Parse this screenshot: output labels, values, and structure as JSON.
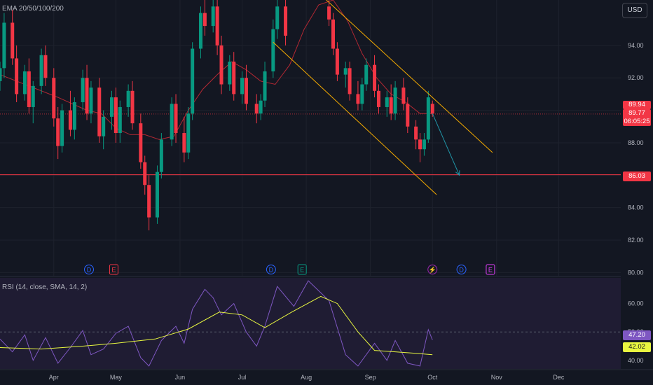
{
  "indicator_labels": {
    "ema": "EMA 20/50/100/200",
    "rsi": "RSI (14, close, SMA, 14, 2)"
  },
  "currency_button": "USD",
  "price_badges": {
    "last": "89.94",
    "current": "89.77",
    "countdown": "06:05:25",
    "level": "86.03",
    "rsi": "47.20",
    "rsi_ma": "42.02"
  },
  "colors": {
    "background": "#131722",
    "bull_candle": "#089981",
    "bear_candle": "#f23645",
    "ema": "#b22833",
    "channel": "#f2a900",
    "support_line": "#f23645",
    "projection_arrow": "#2196a8",
    "rsi_line": "#7e57c2",
    "rsi_ma": "#e8f740",
    "grid": "#1e222d",
    "axis_text": "#b2b5be"
  },
  "events": [
    {
      "letter": "D",
      "date": "2024-04-18",
      "color": "#2962ff",
      "icon": "dividend-icon"
    },
    {
      "letter": "E",
      "date": "2024-04-30",
      "color": "#f23645",
      "icon": "earnings-icon"
    },
    {
      "letter": "D",
      "date": "2024-07-15",
      "color": "#2962ff",
      "icon": "dividend-icon"
    },
    {
      "letter": "E",
      "date": "2024-07-30",
      "color": "#089981",
      "icon": "earnings-icon"
    },
    {
      "letter": "⚡",
      "date": "2024-10-01",
      "color": "#9c27b0",
      "icon": "split-icon"
    },
    {
      "letter": "D",
      "date": "2024-10-15",
      "color": "#2962ff",
      "icon": "dividend-icon"
    },
    {
      "letter": "E",
      "date": "2024-10-29",
      "color": "#e040fb",
      "icon": "earnings-icon"
    }
  ],
  "chart_data": [
    {
      "type": "candlestick",
      "title": "",
      "price_axis": {
        "ticks": [
          80,
          82,
          84,
          86,
          88,
          90,
          92,
          94
        ],
        "tick_labels": [
          "80.00",
          "82.00",
          "84.00",
          "86.00",
          "88.00",
          "90.00",
          "92.00",
          "94.00"
        ],
        "range": [
          79.8,
          96.8
        ]
      },
      "time_axis": {
        "labels": [
          "Apr",
          "May",
          "Jun",
          "Jul",
          "Aug",
          "Sep",
          "Oct",
          "Nov",
          "Dec"
        ],
        "label_dates": [
          "2024-04-01",
          "2024-05-01",
          "2024-06-01",
          "2024-07-01",
          "2024-08-01",
          "2024-09-01",
          "2024-10-01",
          "2024-11-01",
          "2024-12-01"
        ],
        "range": [
          "2024-03-06",
          "2024-12-31"
        ]
      },
      "grid": true,
      "horizontal_level": 86.03,
      "current_price": 89.77,
      "last_close": 89.94,
      "channel_upper": [
        [
          "2024-08-09",
          97.0
        ],
        [
          "2024-10-30",
          87.4
        ]
      ],
      "channel_lower": [
        [
          "2024-07-16",
          94.2
        ],
        [
          "2024-10-03",
          84.8
        ]
      ],
      "projection_arrow": [
        [
          "2024-10-01",
          89.8
        ],
        [
          "2024-10-14",
          86.0
        ]
      ],
      "ema": [
        [
          "2024-03-06",
          92.2
        ],
        [
          "2024-03-20",
          91.5
        ],
        [
          "2024-04-03",
          90.8
        ],
        [
          "2024-04-17",
          90.0
        ],
        [
          "2024-04-24",
          89.8
        ],
        [
          "2024-05-01",
          88.9
        ],
        [
          "2024-05-08",
          88.5
        ],
        [
          "2024-05-15",
          88.5
        ],
        [
          "2024-05-22",
          88.2
        ],
        [
          "2024-05-29",
          88.4
        ],
        [
          "2024-06-05",
          90.0
        ],
        [
          "2024-06-12",
          91.3
        ],
        [
          "2024-06-19",
          92.2
        ],
        [
          "2024-06-26",
          93.0
        ],
        [
          "2024-07-03",
          92.5
        ],
        [
          "2024-07-10",
          91.8
        ],
        [
          "2024-07-17",
          91.6
        ],
        [
          "2024-07-24",
          92.8
        ],
        [
          "2024-07-31",
          95.0
        ],
        [
          "2024-08-07",
          96.5
        ],
        [
          "2024-08-14",
          96.8
        ],
        [
          "2024-08-21",
          95.5
        ],
        [
          "2024-08-28",
          93.5
        ],
        [
          "2024-09-04",
          92.0
        ],
        [
          "2024-09-11",
          91.0
        ],
        [
          "2024-09-18",
          90.5
        ],
        [
          "2024-09-25",
          89.8
        ],
        [
          "2024-10-01",
          89.8
        ]
      ],
      "candles": [
        {
          "d": "2024-03-06",
          "o": 91.8,
          "h": 93.0,
          "l": 91.2,
          "c": 92.6
        },
        {
          "d": "2024-03-08",
          "o": 92.6,
          "h": 96.0,
          "l": 92.0,
          "c": 95.4
        },
        {
          "d": "2024-03-12",
          "o": 95.4,
          "h": 96.2,
          "l": 92.8,
          "c": 93.2
        },
        {
          "d": "2024-03-14",
          "o": 93.2,
          "h": 94.0,
          "l": 90.5,
          "c": 91.0
        },
        {
          "d": "2024-03-18",
          "o": 91.0,
          "h": 92.8,
          "l": 90.6,
          "c": 92.4
        },
        {
          "d": "2024-03-20",
          "o": 92.4,
          "h": 93.2,
          "l": 89.8,
          "c": 90.2
        },
        {
          "d": "2024-03-22",
          "o": 90.2,
          "h": 91.8,
          "l": 89.2,
          "c": 91.5
        },
        {
          "d": "2024-03-26",
          "o": 91.5,
          "h": 93.8,
          "l": 91.0,
          "c": 93.4
        },
        {
          "d": "2024-03-28",
          "o": 93.4,
          "h": 94.0,
          "l": 91.5,
          "c": 92.0
        },
        {
          "d": "2024-04-01",
          "o": 92.0,
          "h": 92.6,
          "l": 89.0,
          "c": 89.5
        },
        {
          "d": "2024-04-03",
          "o": 89.5,
          "h": 90.2,
          "l": 87.0,
          "c": 87.8
        },
        {
          "d": "2024-04-05",
          "o": 87.8,
          "h": 90.4,
          "l": 87.4,
          "c": 90.0
        },
        {
          "d": "2024-04-09",
          "o": 90.0,
          "h": 91.2,
          "l": 88.4,
          "c": 88.8
        },
        {
          "d": "2024-04-11",
          "o": 88.8,
          "h": 90.8,
          "l": 88.2,
          "c": 90.5
        },
        {
          "d": "2024-04-15",
          "o": 90.5,
          "h": 92.5,
          "l": 90.0,
          "c": 92.0
        },
        {
          "d": "2024-04-17",
          "o": 92.0,
          "h": 92.8,
          "l": 89.4,
          "c": 89.8
        },
        {
          "d": "2024-04-19",
          "o": 89.8,
          "h": 91.8,
          "l": 89.2,
          "c": 91.4
        },
        {
          "d": "2024-04-23",
          "o": 91.4,
          "h": 92.0,
          "l": 88.0,
          "c": 88.4
        },
        {
          "d": "2024-04-25",
          "o": 88.4,
          "h": 90.0,
          "l": 87.6,
          "c": 89.6
        },
        {
          "d": "2024-04-29",
          "o": 89.6,
          "h": 91.2,
          "l": 88.8,
          "c": 90.8
        },
        {
          "d": "2024-05-01",
          "o": 90.8,
          "h": 91.4,
          "l": 88.0,
          "c": 88.6
        },
        {
          "d": "2024-05-03",
          "o": 88.6,
          "h": 90.6,
          "l": 88.0,
          "c": 90.2
        },
        {
          "d": "2024-05-07",
          "o": 90.2,
          "h": 91.6,
          "l": 89.6,
          "c": 91.2
        },
        {
          "d": "2024-05-09",
          "o": 91.2,
          "h": 91.8,
          "l": 88.8,
          "c": 89.2
        },
        {
          "d": "2024-05-13",
          "o": 89.2,
          "h": 89.8,
          "l": 86.4,
          "c": 86.8
        },
        {
          "d": "2024-05-15",
          "o": 86.8,
          "h": 87.2,
          "l": 84.8,
          "c": 85.4
        },
        {
          "d": "2024-05-17",
          "o": 85.4,
          "h": 86.0,
          "l": 82.6,
          "c": 83.4
        },
        {
          "d": "2024-05-21",
          "o": 83.4,
          "h": 86.6,
          "l": 83.0,
          "c": 86.2
        },
        {
          "d": "2024-05-23",
          "o": 86.2,
          "h": 88.6,
          "l": 85.8,
          "c": 88.2
        },
        {
          "d": "2024-05-28",
          "o": 88.2,
          "h": 90.8,
          "l": 87.8,
          "c": 90.4
        },
        {
          "d": "2024-05-30",
          "o": 90.4,
          "h": 91.0,
          "l": 88.0,
          "c": 88.6
        },
        {
          "d": "2024-06-03",
          "o": 88.6,
          "h": 89.6,
          "l": 86.8,
          "c": 87.4
        },
        {
          "d": "2024-06-05",
          "o": 87.4,
          "h": 90.2,
          "l": 87.0,
          "c": 89.8
        },
        {
          "d": "2024-06-07",
          "o": 89.8,
          "h": 94.2,
          "l": 89.4,
          "c": 93.8
        },
        {
          "d": "2024-06-11",
          "o": 93.8,
          "h": 96.4,
          "l": 93.2,
          "c": 96.0
        },
        {
          "d": "2024-06-13",
          "o": 96.0,
          "h": 96.8,
          "l": 94.6,
          "c": 95.2
        },
        {
          "d": "2024-06-17",
          "o": 95.2,
          "h": 96.8,
          "l": 94.8,
          "c": 96.4
        },
        {
          "d": "2024-06-19",
          "o": 96.4,
          "h": 96.8,
          "l": 93.4,
          "c": 94.0
        },
        {
          "d": "2024-06-21",
          "o": 94.0,
          "h": 94.6,
          "l": 91.0,
          "c": 91.6
        },
        {
          "d": "2024-06-25",
          "o": 91.6,
          "h": 93.4,
          "l": 91.2,
          "c": 93.0
        },
        {
          "d": "2024-06-27",
          "o": 93.0,
          "h": 93.6,
          "l": 90.6,
          "c": 91.0
        },
        {
          "d": "2024-07-01",
          "o": 91.0,
          "h": 92.4,
          "l": 90.4,
          "c": 92.0
        },
        {
          "d": "2024-07-03",
          "o": 92.0,
          "h": 92.8,
          "l": 90.0,
          "c": 90.4
        },
        {
          "d": "2024-07-08",
          "o": 90.4,
          "h": 91.0,
          "l": 89.2,
          "c": 89.8
        },
        {
          "d": "2024-07-10",
          "o": 89.8,
          "h": 91.0,
          "l": 89.4,
          "c": 90.6
        },
        {
          "d": "2024-07-12",
          "o": 90.6,
          "h": 93.0,
          "l": 90.2,
          "c": 92.4
        },
        {
          "d": "2024-07-16",
          "o": 92.4,
          "h": 95.6,
          "l": 92.0,
          "c": 95.0
        },
        {
          "d": "2024-07-18",
          "o": 95.0,
          "h": 96.8,
          "l": 94.4,
          "c": 96.4
        },
        {
          "d": "2024-07-22",
          "o": 96.4,
          "h": 96.8,
          "l": 94.0,
          "c": 94.6
        },
        {
          "d": "2024-08-12",
          "o": 96.4,
          "h": 96.8,
          "l": 95.2,
          "c": 95.6
        },
        {
          "d": "2024-08-14",
          "o": 95.6,
          "h": 96.0,
          "l": 93.4,
          "c": 93.8
        },
        {
          "d": "2024-08-16",
          "o": 93.8,
          "h": 94.2,
          "l": 91.8,
          "c": 92.2
        },
        {
          "d": "2024-08-20",
          "o": 92.2,
          "h": 93.0,
          "l": 91.4,
          "c": 92.6
        },
        {
          "d": "2024-08-22",
          "o": 92.6,
          "h": 93.0,
          "l": 90.6,
          "c": 91.0
        },
        {
          "d": "2024-08-26",
          "o": 91.0,
          "h": 91.8,
          "l": 90.0,
          "c": 90.4
        },
        {
          "d": "2024-08-28",
          "o": 90.4,
          "h": 92.0,
          "l": 90.0,
          "c": 91.6
        },
        {
          "d": "2024-08-30",
          "o": 91.6,
          "h": 93.2,
          "l": 91.2,
          "c": 92.8
        },
        {
          "d": "2024-09-03",
          "o": 92.8,
          "h": 93.4,
          "l": 90.8,
          "c": 91.2
        },
        {
          "d": "2024-09-05",
          "o": 91.2,
          "h": 91.6,
          "l": 89.8,
          "c": 90.2
        },
        {
          "d": "2024-09-09",
          "o": 90.2,
          "h": 91.2,
          "l": 89.6,
          "c": 90.8
        },
        {
          "d": "2024-09-11",
          "o": 90.8,
          "h": 91.6,
          "l": 89.4,
          "c": 89.8
        },
        {
          "d": "2024-09-13",
          "o": 89.8,
          "h": 91.8,
          "l": 89.4,
          "c": 91.4
        },
        {
          "d": "2024-09-17",
          "o": 91.4,
          "h": 92.0,
          "l": 90.0,
          "c": 90.4
        },
        {
          "d": "2024-09-19",
          "o": 90.4,
          "h": 90.8,
          "l": 88.6,
          "c": 89.0
        },
        {
          "d": "2024-09-23",
          "o": 89.0,
          "h": 89.4,
          "l": 87.6,
          "c": 88.2
        },
        {
          "d": "2024-09-25",
          "o": 88.2,
          "h": 88.6,
          "l": 86.8,
          "c": 87.6
        },
        {
          "d": "2024-09-27",
          "o": 87.6,
          "h": 88.6,
          "l": 87.2,
          "c": 88.2
        },
        {
          "d": "2024-09-29",
          "o": 88.2,
          "h": 91.2,
          "l": 88.0,
          "c": 90.8
        },
        {
          "d": "2024-10-01",
          "o": 90.4,
          "h": 90.6,
          "l": 89.6,
          "c": 89.8
        }
      ]
    },
    {
      "type": "line",
      "title": "RSI (14, close, SMA, 14, 2)",
      "y_axis": {
        "ticks": [
          40,
          50,
          60
        ],
        "tick_labels": [
          "40.00",
          "50.00",
          "60.00"
        ],
        "range": [
          37,
          69
        ]
      },
      "midline": 50,
      "series": [
        {
          "name": "RSI",
          "color": "#7e57c2",
          "points": [
            [
              "2024-03-06",
              47.5
            ],
            [
              "2024-03-12",
              43.0
            ],
            [
              "2024-03-18",
              49.0
            ],
            [
              "2024-03-22",
              40.0
            ],
            [
              "2024-03-28",
              48.0
            ],
            [
              "2024-04-03",
              39.0
            ],
            [
              "2024-04-09",
              44.5
            ],
            [
              "2024-04-15",
              50.5
            ],
            [
              "2024-04-19",
              42.0
            ],
            [
              "2024-04-25",
              44.0
            ],
            [
              "2024-05-01",
              49.5
            ],
            [
              "2024-05-07",
              52.0
            ],
            [
              "2024-05-13",
              41.0
            ],
            [
              "2024-05-17",
              38.0
            ],
            [
              "2024-05-23",
              47.0
            ],
            [
              "2024-05-30",
              52.0
            ],
            [
              "2024-06-03",
              46.0
            ],
            [
              "2024-06-07",
              58.0
            ],
            [
              "2024-06-13",
              65.0
            ],
            [
              "2024-06-17",
              62.0
            ],
            [
              "2024-06-21",
              56.0
            ],
            [
              "2024-06-27",
              60.0
            ],
            [
              "2024-07-03",
              50.0
            ],
            [
              "2024-07-08",
              45.0
            ],
            [
              "2024-07-12",
              52.0
            ],
            [
              "2024-07-18",
              66.0
            ],
            [
              "2024-07-26",
              59.0
            ],
            [
              "2024-08-02",
              68.0
            ],
            [
              "2024-08-12",
              61.0
            ],
            [
              "2024-08-20",
              42.0
            ],
            [
              "2024-08-26",
              38.0
            ],
            [
              "2024-09-03",
              46.0
            ],
            [
              "2024-09-09",
              40.0
            ],
            [
              "2024-09-13",
              47.0
            ],
            [
              "2024-09-19",
              39.0
            ],
            [
              "2024-09-25",
              38.0
            ],
            [
              "2024-09-29",
              50.8
            ],
            [
              "2024-10-01",
              47.2
            ]
          ]
        },
        {
          "name": "SMA",
          "color": "#e8f740",
          "points": [
            [
              "2024-03-06",
              44.5
            ],
            [
              "2024-03-26",
              44.0
            ],
            [
              "2024-04-15",
              45.0
            ],
            [
              "2024-05-01",
              46.0
            ],
            [
              "2024-05-20",
              47.5
            ],
            [
              "2024-06-05",
              51.0
            ],
            [
              "2024-06-20",
              57.0
            ],
            [
              "2024-07-01",
              56.0
            ],
            [
              "2024-07-12",
              51.5
            ],
            [
              "2024-07-25",
              57.0
            ],
            [
              "2024-08-08",
              62.5
            ],
            [
              "2024-08-16",
              60.0
            ],
            [
              "2024-08-26",
              50.0
            ],
            [
              "2024-09-03",
              43.5
            ],
            [
              "2024-09-13",
              43.0
            ],
            [
              "2024-09-23",
              42.5
            ],
            [
              "2024-10-01",
              42.0
            ]
          ]
        }
      ]
    }
  ]
}
